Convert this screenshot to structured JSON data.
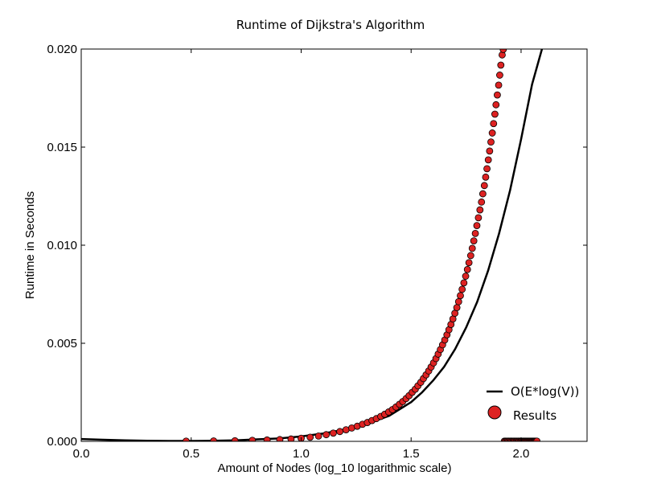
{
  "chart_data": {
    "type": "scatter",
    "title": "Runtime of Dijkstra's Algorithm",
    "xlabel": "Amount of Nodes (log_10 logarithmic scale)",
    "ylabel": "Runtime in Seconds",
    "xlim": [
      0,
      2.3
    ],
    "ylim": [
      0,
      0.02
    ],
    "x_ticks": [
      0.0,
      0.5,
      1.0,
      1.5,
      2.0
    ],
    "x_tick_labels": [
      "0.0",
      "0.5",
      "1.0",
      "1.5",
      "2.0"
    ],
    "y_ticks": [
      0.0,
      0.005,
      0.01,
      0.015,
      0.02
    ],
    "y_tick_labels": [
      "0.000",
      "0.005",
      "0.010",
      "0.015",
      "0.020"
    ],
    "grid": false,
    "legend_position": "lower-right",
    "series": [
      {
        "name": "O(E*log(V))",
        "kind": "line",
        "color": "#000000",
        "x": [
          0.0,
          0.1,
          0.2,
          0.3,
          0.4,
          0.5,
          0.6,
          0.7,
          0.8,
          0.9,
          1.0,
          1.1,
          1.2,
          1.3,
          1.4,
          1.5,
          1.55,
          1.6,
          1.65,
          1.7,
          1.75,
          1.8,
          1.85,
          1.9,
          1.95,
          2.0,
          2.05,
          2.1,
          2.12
        ],
        "y": [
          0.00012,
          8e-05,
          5e-05,
          3e-05,
          2e-05,
          2e-05,
          3e-05,
          5e-05,
          0.0001,
          0.00015,
          0.00025,
          0.0004,
          0.0006,
          0.0009,
          0.0013,
          0.002,
          0.0025,
          0.0031,
          0.0038,
          0.0047,
          0.0058,
          0.0071,
          0.0087,
          0.0106,
          0.0128,
          0.0154,
          0.0182,
          0.0202,
          0.0208
        ]
      },
      {
        "name": "Results",
        "kind": "scatter",
        "color": "#dd2222",
        "x": [
          0.477,
          0.602,
          0.699,
          0.778,
          0.845,
          0.903,
          0.954,
          1.0,
          1.041,
          1.079,
          1.114,
          1.146,
          1.176,
          1.204,
          1.23,
          1.255,
          1.279,
          1.301,
          1.322,
          1.342,
          1.362,
          1.38,
          1.398,
          1.415,
          1.431,
          1.447,
          1.462,
          1.477,
          1.491,
          1.505,
          1.519,
          1.531,
          1.544,
          1.556,
          1.568,
          1.58,
          1.591,
          1.602,
          1.613,
          1.623,
          1.633,
          1.643,
          1.653,
          1.663,
          1.672,
          1.681,
          1.69,
          1.699,
          1.708,
          1.716,
          1.724,
          1.732,
          1.74,
          1.748,
          1.756,
          1.763,
          1.771,
          1.778,
          1.785,
          1.792,
          1.799,
          1.806,
          1.813,
          1.82,
          1.826,
          1.833,
          1.839,
          1.845,
          1.851,
          1.857,
          1.863,
          1.869,
          1.875,
          1.881,
          1.886,
          1.892,
          1.898,
          1.903,
          1.908,
          1.914,
          1.919,
          1.924,
          1.929,
          1.934,
          1.939,
          1.944,
          1.949,
          1.954,
          1.959,
          1.964,
          1.968,
          1.973,
          1.978,
          1.982,
          1.987,
          1.991,
          1.996,
          2.0,
          2.004,
          2.009,
          2.013,
          2.017,
          2.021,
          2.025,
          2.029,
          2.033,
          2.037,
          2.041,
          2.045,
          2.049,
          2.053,
          2.057,
          2.061,
          2.064,
          2.068,
          2.072
        ],
        "y": [
          1e-05,
          2e-05,
          3e-05,
          5e-05,
          7e-05,
          9e-05,
          0.00012,
          0.00016,
          0.00021,
          0.00027,
          0.00034,
          0.00042,
          0.0005,
          0.00059,
          0.00068,
          0.00077,
          0.00087,
          0.00096,
          0.00106,
          0.00116,
          0.00127,
          0.00138,
          0.0015,
          0.00162,
          0.00175,
          0.00189,
          0.00203,
          0.00218,
          0.00233,
          0.0025,
          0.00266,
          0.00283,
          0.00301,
          0.0032,
          0.00339,
          0.00359,
          0.00379,
          0.004,
          0.00422,
          0.00445,
          0.00468,
          0.00492,
          0.00517,
          0.00543,
          0.00569,
          0.00596,
          0.00624,
          0.00653,
          0.00682,
          0.00712,
          0.00743,
          0.00775,
          0.00808,
          0.00842,
          0.00876,
          0.00911,
          0.00947,
          0.00984,
          0.01022,
          0.0106,
          0.011,
          0.0114,
          0.0118,
          0.0122,
          0.01262,
          0.01304,
          0.01347,
          0.0139,
          0.01435,
          0.0148,
          0.01526,
          0.01572,
          0.0162,
          0.01668,
          0.01716,
          0.01766,
          0.01816,
          0.01867,
          0.01918,
          0.0197,
          0.01998,
          1e-05,
          1e-05,
          1e-05,
          1e-05,
          1e-05,
          1e-05,
          1e-05,
          1e-05,
          1e-05,
          1e-05,
          1e-05,
          1e-05,
          1e-05,
          1e-05,
          1e-05,
          1e-05,
          1e-05,
          1e-05,
          1e-05,
          1e-05,
          1e-05,
          1e-05,
          1e-05,
          1e-05,
          1e-05,
          1e-05,
          1e-05,
          1e-05,
          1e-05,
          1e-05,
          1e-05,
          1e-05,
          1e-05,
          1e-05,
          1e-05
        ]
      }
    ]
  }
}
